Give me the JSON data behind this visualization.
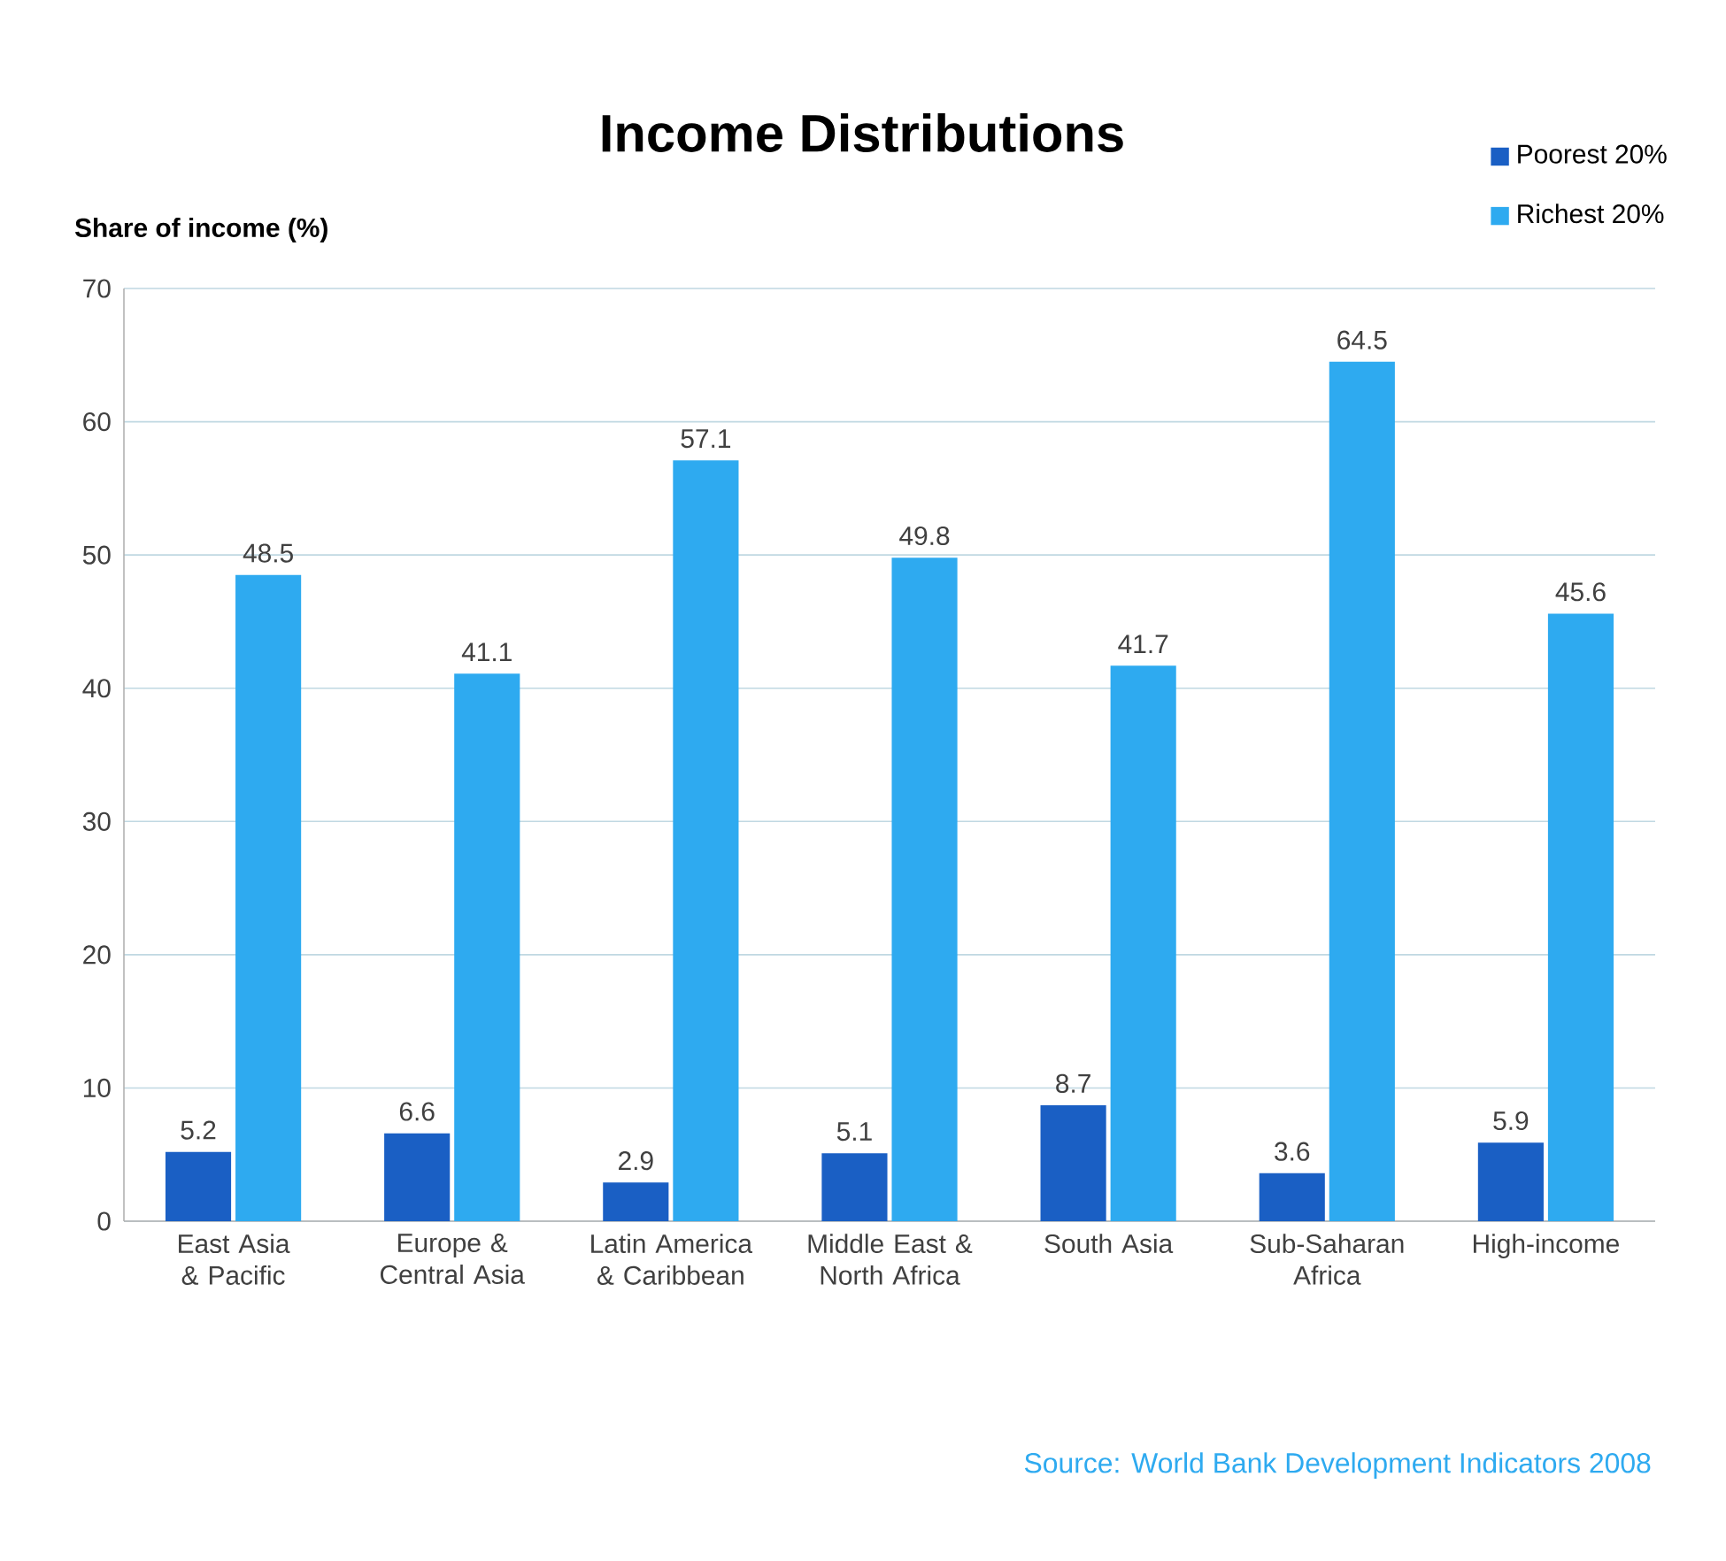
{
  "chart_data": {
    "type": "bar",
    "title": "Income Distributions",
    "ylabel": "Share of income (%)",
    "categories": [
      "East Asia & Pacific",
      "Europe & Central Asia",
      "Latin America & Caribbean",
      "Middle East & North Africa",
      "South Asia",
      "Sub-Saharan Africa",
      "High-income"
    ],
    "series": [
      {
        "name": "Poorest 20%",
        "color": "#1a5fc4",
        "values": [
          5.2,
          6.6,
          2.9,
          5.1,
          8.7,
          3.6,
          5.9
        ]
      },
      {
        "name": "Richest 20%",
        "color": "#2eaaf0",
        "values": [
          48.5,
          41.1,
          57.1,
          49.8,
          41.7,
          64.5,
          45.6
        ]
      }
    ],
    "ylim": [
      0,
      70
    ],
    "yticks": [
      0,
      10,
      20,
      30,
      40,
      50,
      60,
      70
    ],
    "grid": "y",
    "legend": "top right",
    "data_labels": true,
    "annotations": [
      "Source: World Bank Development Indicators 2008"
    ]
  }
}
